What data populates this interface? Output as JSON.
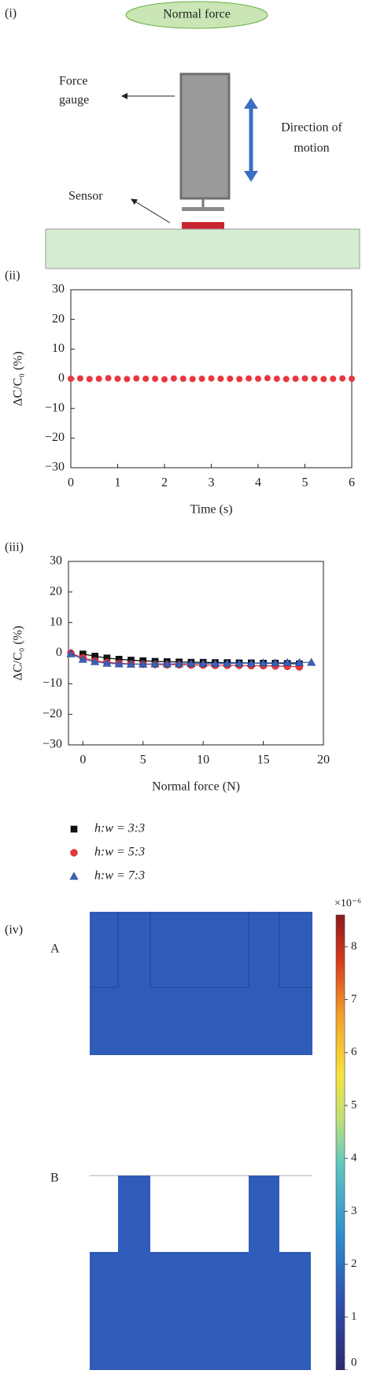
{
  "diagram": {
    "panel_label": "(i)",
    "title": "Normal force",
    "force_gauge": [
      "Force",
      "gauge"
    ],
    "direction": [
      "Direction of",
      "motion"
    ],
    "sensor": "Sensor"
  },
  "chart_data": [
    {
      "type": "scatter",
      "panel_label": "(ii)",
      "xlabel": "Time (s)",
      "ylabel": "ΔC/C₀ (%)",
      "color": "#e8383d",
      "x": [
        0,
        0.2,
        0.4,
        0.6,
        0.8,
        1,
        1.2,
        1.4,
        1.6,
        1.8,
        2,
        2.2,
        2.4,
        2.6,
        2.8,
        3,
        3.2,
        3.4,
        3.6,
        3.8,
        4,
        4.2,
        4.4,
        4.6,
        4.8,
        5,
        5.2,
        5.4,
        5.6,
        5.8,
        6
      ],
      "values": [
        0,
        0.1,
        -0.1,
        0,
        0.2,
        0,
        -0.1,
        0.1,
        0,
        0,
        -0.2,
        0.1,
        0,
        -0.1,
        0,
        0.1,
        0,
        0,
        -0.1,
        0.1,
        0,
        0.2,
        0,
        -0.1,
        0,
        0.1,
        0,
        -0.1,
        0,
        0.1,
        0
      ],
      "xlim": [
        0,
        6
      ],
      "xticks": [
        0,
        1,
        2,
        3,
        4,
        5,
        6
      ],
      "ylim": [
        -30,
        30
      ],
      "yticks": [
        {
          "value": -30,
          "label": "−30"
        },
        {
          "value": -20,
          "label": "−20"
        },
        {
          "value": -10,
          "label": "−10"
        },
        0,
        10,
        20,
        30
      ]
    },
    {
      "type": "line",
      "panel_label": "(iii)",
      "xlabel": "Normal force (N)",
      "ylabel": "ΔC/C₀ (%)",
      "xlim": [
        -1.2,
        20
      ],
      "xticks": [
        0,
        5,
        10,
        15,
        20
      ],
      "ylim": [
        -30,
        30
      ],
      "yticks": [
        {
          "value": -30,
          "label": "−30"
        },
        {
          "value": -20,
          "label": "−20"
        },
        {
          "value": -10,
          "label": "−10"
        },
        0,
        10,
        20,
        30
      ],
      "series": [
        {
          "name": "h:w = 3:3",
          "color": "#111111",
          "marker": "square",
          "x": [
            0,
            1,
            2,
            3,
            4,
            5,
            6,
            7,
            8,
            9,
            10,
            11,
            12,
            13,
            14,
            15,
            16,
            17,
            18
          ],
          "values": [
            -0.3,
            -1,
            -1.6,
            -2,
            -2.3,
            -2.5,
            -2.7,
            -2.8,
            -2.9,
            -3,
            -3,
            -3.1,
            -3.1,
            -3.2,
            -3.2,
            -3.3,
            -3.3,
            -3.4,
            -3.5
          ]
        },
        {
          "name": "h:w = 5:3",
          "color": "#e8383d",
          "marker": "circle",
          "x": [
            -1,
            0,
            1,
            2,
            3,
            4,
            5,
            6,
            7,
            8,
            9,
            10,
            11,
            12,
            13,
            14,
            15,
            16,
            17,
            18
          ],
          "values": [
            0,
            -1.5,
            -2.5,
            -3,
            -3.3,
            -3.5,
            -3.6,
            -3.7,
            -3.8,
            -3.8,
            -3.9,
            -3.9,
            -4,
            -4,
            -4,
            -4.1,
            -4.1,
            -4.2,
            -4.3,
            -4.5
          ]
        },
        {
          "name": "h:w = 7:3",
          "color": "#3a62b8",
          "marker": "triangle",
          "x": [
            -1,
            0,
            1,
            2,
            3,
            4,
            5,
            6,
            7,
            8,
            9,
            10,
            11,
            12,
            13,
            14,
            15,
            16,
            17,
            18,
            19
          ],
          "values": [
            -0.2,
            -2,
            -2.8,
            -3.3,
            -3.5,
            -3.6,
            -3.6,
            -3.5,
            -3.5,
            -3.5,
            -3.4,
            -3.4,
            -3.4,
            -3.3,
            -3.3,
            -3.3,
            -3.2,
            -3.2,
            -3.1,
            -3.1,
            -3
          ]
        }
      ]
    }
  ],
  "simulation": {
    "panel_label": "(iv)",
    "labels": [
      "A",
      "B"
    ],
    "colorbar": {
      "multiplier_label": "×10⁻⁶",
      "lim": [
        0,
        8.6
      ],
      "ticks": [
        0,
        1,
        2,
        3,
        4,
        5,
        6,
        7,
        8
      ]
    }
  }
}
